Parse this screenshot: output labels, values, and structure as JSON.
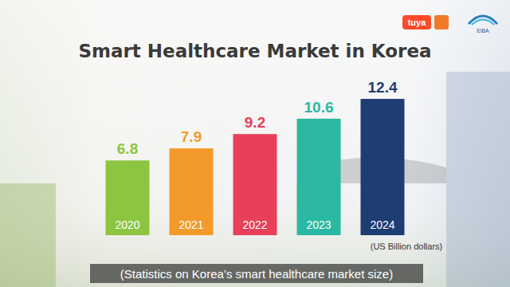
{
  "chart_data": {
    "type": "bar",
    "title": "Smart Healthcare Market in Korea",
    "ylabel": "(US Billion dollars)",
    "categories": [
      "2020",
      "2021",
      "2022",
      "2023",
      "2024"
    ],
    "values": [
      6.8,
      7.9,
      9.2,
      10.6,
      12.4
    ],
    "colors": [
      "#8cc540",
      "#f39a2b",
      "#e8405a",
      "#2bb8a2",
      "#1e3d72"
    ],
    "ylim": [
      0,
      14
    ],
    "grid": false,
    "data_labels": true,
    "tick_labels": "x",
    "annotations": [
      "(Statistics on Korea’s smart healthcare market size)",
      "tuya",
      "EiBA"
    ]
  }
}
